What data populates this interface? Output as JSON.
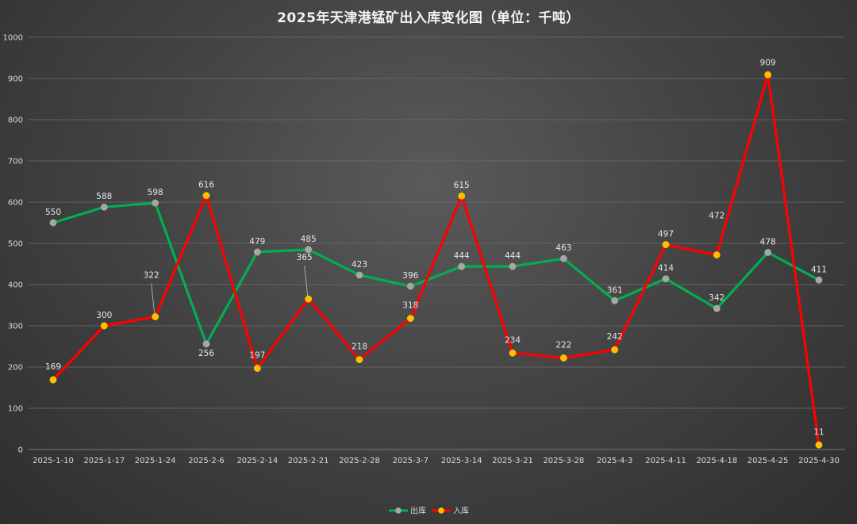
{
  "chart_data": {
    "type": "line",
    "title": "2025年天津港锰矿出入库变化图（单位：千吨）",
    "categories": [
      "2025-1-10",
      "2025-1-17",
      "2025-1-24",
      "2025-2-6",
      "2025-2-14",
      "2025-2-21",
      "2025-2-28",
      "2025-3-7",
      "2025-3-14",
      "2025-3-21",
      "2025-3-28",
      "2025-4-3",
      "2025-4-11",
      "2025-4-18",
      "2025-4-25",
      "2025-4-30"
    ],
    "ylim": [
      0,
      1000
    ],
    "yticks": [
      0,
      100,
      200,
      300,
      400,
      500,
      600,
      700,
      800,
      900,
      1000
    ],
    "grid": true,
    "legend_position": "bottom",
    "series": [
      {
        "name": "出库",
        "color": "#00b050",
        "marker_color": "#a6a6a6",
        "values": [
          550,
          588,
          598,
          256,
          479,
          485,
          423,
          396,
          444,
          444,
          463,
          361,
          414,
          342,
          478,
          411
        ]
      },
      {
        "name": "入库",
        "color": "#ff0000",
        "marker_color": "#ffc000",
        "values": [
          169,
          300,
          322,
          616,
          197,
          365,
          218,
          318,
          615,
          234,
          222,
          242,
          497,
          472,
          909,
          11
        ]
      }
    ]
  }
}
